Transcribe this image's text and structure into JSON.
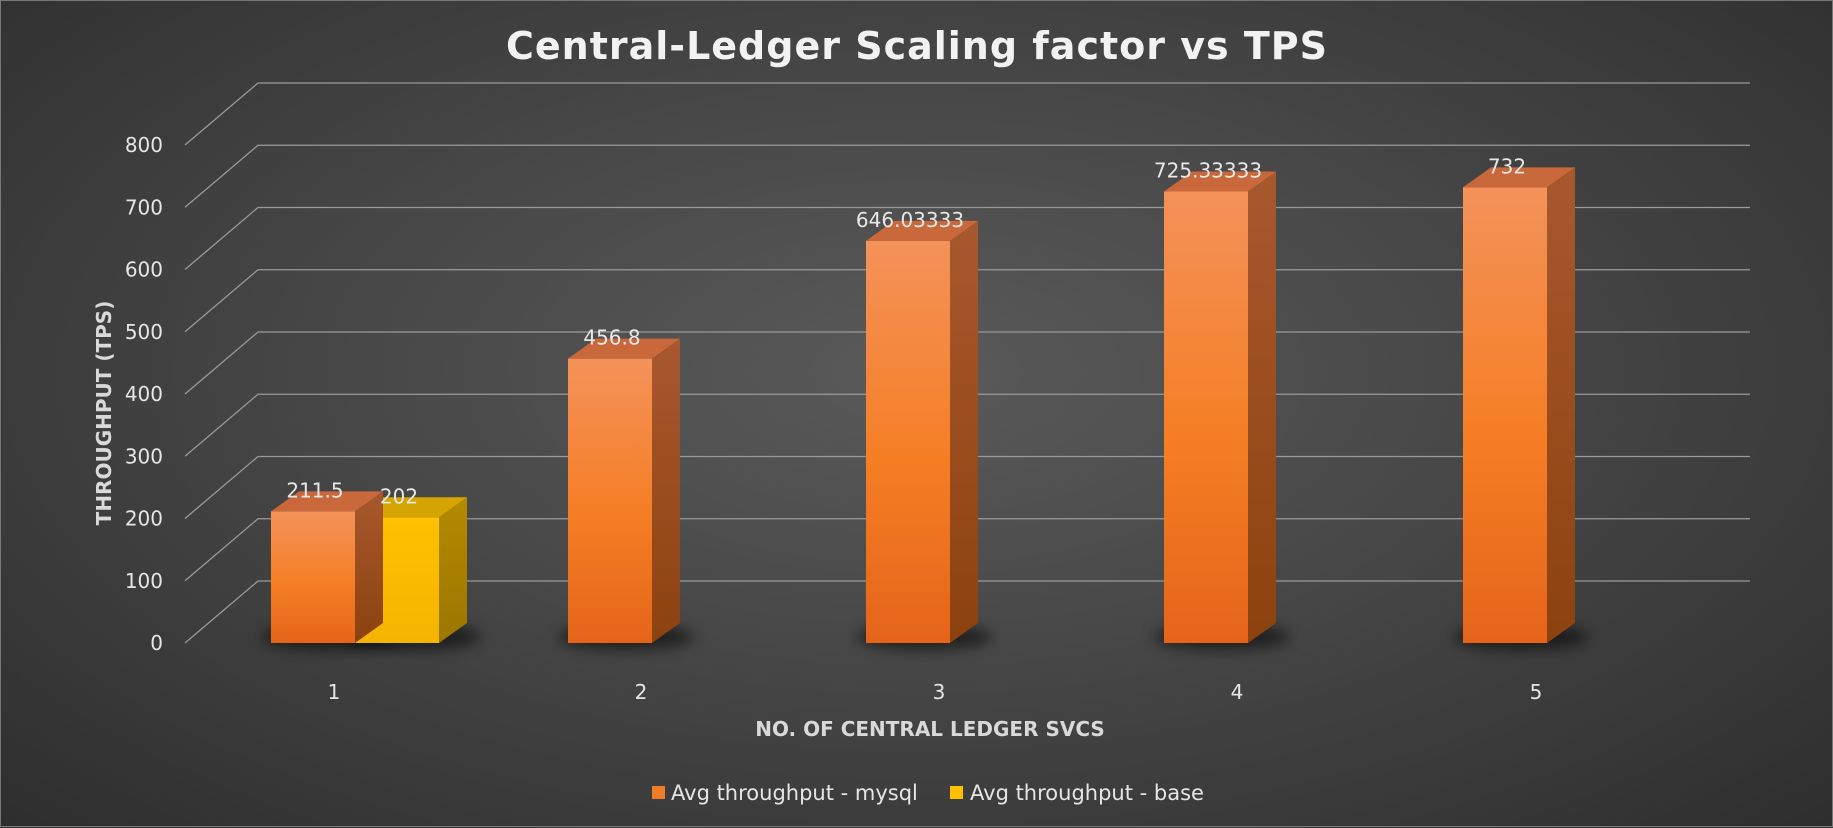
{
  "chart_data": {
    "type": "bar",
    "title": "Central-Ledger Scaling factor vs TPS",
    "xlabel": "NO. OF CENTRAL LEDGER SVCS",
    "ylabel": "THROUGHPUT (TPS)",
    "categories": [
      "1",
      "2",
      "3",
      "4",
      "5"
    ],
    "ylim": [
      0,
      800
    ],
    "yticks": [
      0,
      100,
      200,
      300,
      400,
      500,
      600,
      700,
      800
    ],
    "grid": true,
    "legend_position": "bottom",
    "series": [
      {
        "name": "Avg throughput - mysql",
        "color": "#f07c2a",
        "values": [
          211.5,
          456.8,
          646.03333,
          725.33333,
          732
        ],
        "labels": [
          "211.5",
          "456.8",
          "646.03333",
          "725.33333",
          "732"
        ]
      },
      {
        "name": "Avg throughput - base",
        "color": "#ffc000",
        "values": [
          202,
          null,
          null,
          null,
          null
        ],
        "labels": [
          "202",
          "",
          "",
          "",
          ""
        ]
      }
    ]
  }
}
